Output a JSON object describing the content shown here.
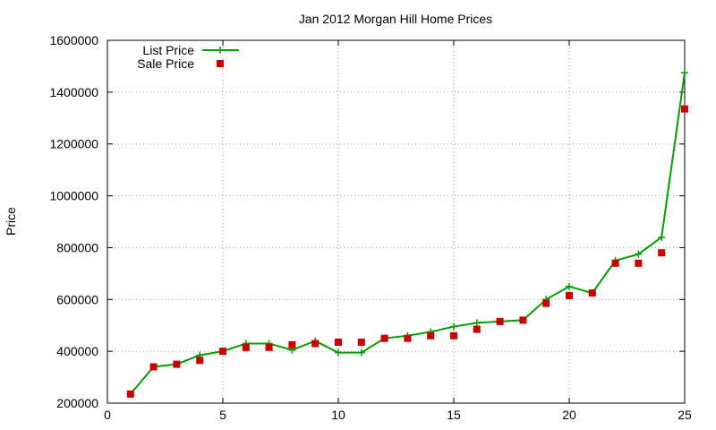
{
  "chart_data": {
    "type": "line",
    "title": "Jan 2012 Morgan Hill Home Prices",
    "xlabel": "",
    "ylabel": "Price",
    "xlim": [
      0,
      25
    ],
    "ylim": [
      200000,
      1600000
    ],
    "xticks": [
      0,
      5,
      10,
      15,
      20,
      25
    ],
    "yticks": [
      200000,
      400000,
      600000,
      800000,
      1000000,
      1200000,
      1400000,
      1600000
    ],
    "grid": true,
    "legend_position": "top-left",
    "series": [
      {
        "name": "List Price",
        "style": "line-plus",
        "color": "#00a000",
        "x": [
          1,
          2,
          3,
          4,
          5,
          6,
          7,
          8,
          9,
          10,
          11,
          12,
          13,
          14,
          15,
          16,
          17,
          18,
          19,
          20,
          21,
          22,
          23,
          24,
          25
        ],
        "values": [
          235000,
          340000,
          350000,
          385000,
          400000,
          430000,
          430000,
          405000,
          440000,
          395000,
          395000,
          450000,
          460000,
          475000,
          495000,
          510000,
          515000,
          520000,
          600000,
          650000,
          625000,
          750000,
          775000,
          840000,
          1475000
        ]
      },
      {
        "name": "Sale Price",
        "style": "square",
        "color": "#cc0000",
        "x": [
          1,
          2,
          3,
          4,
          5,
          6,
          7,
          8,
          9,
          10,
          11,
          12,
          13,
          14,
          15,
          16,
          17,
          18,
          19,
          20,
          21,
          22,
          23,
          24,
          25
        ],
        "values": [
          235000,
          340000,
          350000,
          365000,
          400000,
          415000,
          415000,
          425000,
          430000,
          435000,
          435000,
          450000,
          450000,
          460000,
          460000,
          485000,
          515000,
          520000,
          585000,
          615000,
          625000,
          740000,
          740000,
          780000,
          1335000
        ]
      }
    ]
  }
}
